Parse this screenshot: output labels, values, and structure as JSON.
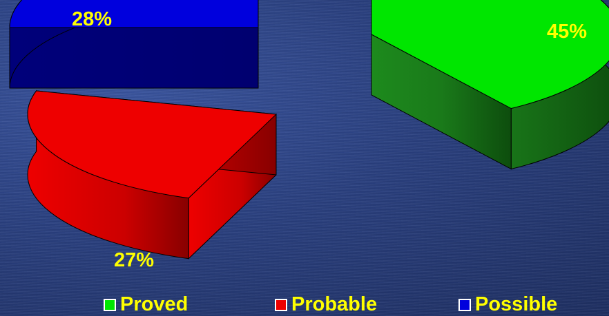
{
  "chart_data": {
    "type": "pie",
    "categories": [
      "Proved",
      "Probable",
      "Possible"
    ],
    "values": [
      45,
      27,
      28
    ],
    "labels": [
      "45%",
      "27%",
      "28%"
    ],
    "colors": [
      "#00e600",
      "#ee0000",
      "#0000dd"
    ],
    "legend_placement": "bottom"
  }
}
